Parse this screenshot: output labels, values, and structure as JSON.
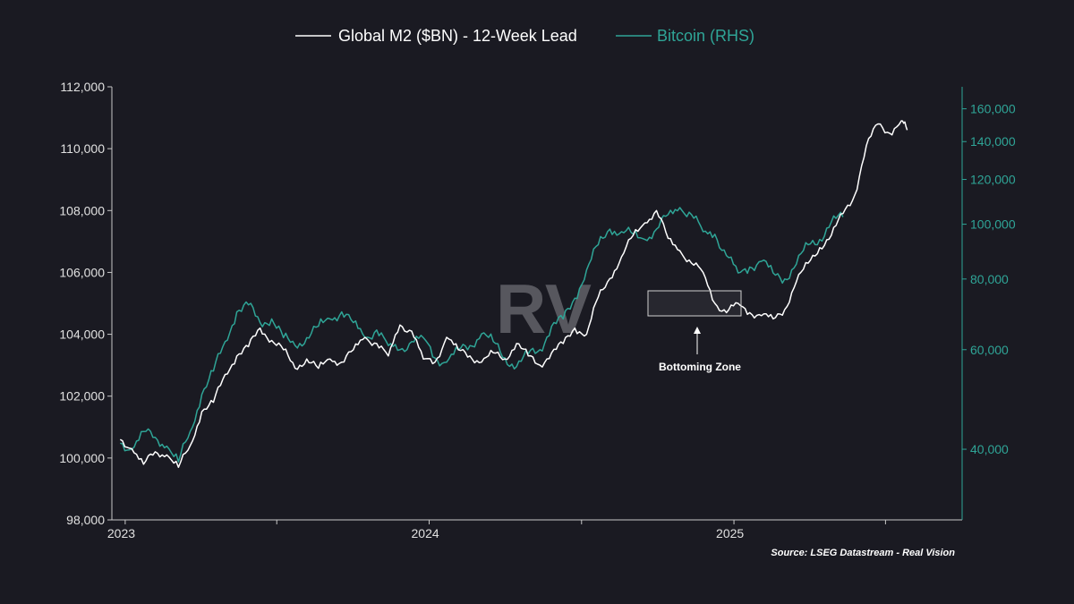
{
  "chart_data": {
    "type": "line",
    "legend_position": "top-center",
    "grid": false,
    "colors": {
      "background": "#1a1a22",
      "m2": "#ffffff",
      "btc": "#2fa597"
    },
    "x_axis": {
      "ticks": [
        "2023",
        "2024",
        "2025"
      ]
    },
    "y_left": {
      "range": [
        98000,
        112000
      ],
      "ticks": [
        98000,
        100000,
        102000,
        104000,
        106000,
        108000,
        110000,
        112000
      ],
      "tick_labels": [
        "98,000",
        "100,000",
        "102,000",
        "104,000",
        "106,000",
        "108,000",
        "110,000",
        "112,000"
      ]
    },
    "y_right": {
      "scale": "log",
      "range": [
        30000,
        175000
      ],
      "ticks": [
        40000,
        60000,
        80000,
        100000,
        120000,
        140000,
        160000
      ],
      "tick_labels": [
        "40,000",
        "60,000",
        "80,000",
        "100,000",
        "120,000",
        "140,000",
        "160,000"
      ]
    },
    "series": [
      {
        "name": "Global M2 ($BN) - 12-Week Lead",
        "axis": "left",
        "points": [
          [
            "2022-12-26",
            100600
          ],
          [
            "2023-01-09",
            100300
          ],
          [
            "2023-01-23",
            99800
          ],
          [
            "2023-02-06",
            100200
          ],
          [
            "2023-02-20",
            100100
          ],
          [
            "2023-03-06",
            99700
          ],
          [
            "2023-03-20",
            100400
          ],
          [
            "2023-04-03",
            101500
          ],
          [
            "2023-04-17",
            101800
          ],
          [
            "2023-05-01",
            102700
          ],
          [
            "2023-05-15",
            103300
          ],
          [
            "2023-05-29",
            103600
          ],
          [
            "2023-06-12",
            104200
          ],
          [
            "2023-06-26",
            103800
          ],
          [
            "2023-07-10",
            103500
          ],
          [
            "2023-07-24",
            102900
          ],
          [
            "2023-08-07",
            103200
          ],
          [
            "2023-08-21",
            102900
          ],
          [
            "2023-09-04",
            103200
          ],
          [
            "2023-09-18",
            103100
          ],
          [
            "2023-10-02",
            103500
          ],
          [
            "2023-10-16",
            103900
          ],
          [
            "2023-10-30",
            103700
          ],
          [
            "2023-11-13",
            103300
          ],
          [
            "2023-11-27",
            104300
          ],
          [
            "2023-12-11",
            104100
          ],
          [
            "2023-12-25",
            103200
          ],
          [
            "2024-01-08",
            103100
          ],
          [
            "2024-01-22",
            103900
          ],
          [
            "2024-02-05",
            103500
          ],
          [
            "2024-02-19",
            103300
          ],
          [
            "2024-03-04",
            103100
          ],
          [
            "2024-03-18",
            103400
          ],
          [
            "2024-04-01",
            103200
          ],
          [
            "2024-04-15",
            103700
          ],
          [
            "2024-04-29",
            103300
          ],
          [
            "2024-05-13",
            103000
          ],
          [
            "2024-05-27",
            103400
          ],
          [
            "2024-06-10",
            103700
          ],
          [
            "2024-06-24",
            104200
          ],
          [
            "2024-07-08",
            104000
          ],
          [
            "2024-07-22",
            105200
          ],
          [
            "2024-08-05",
            105800
          ],
          [
            "2024-08-19",
            106500
          ],
          [
            "2024-09-02",
            107200
          ],
          [
            "2024-09-16",
            107600
          ],
          [
            "2024-09-30",
            108000
          ],
          [
            "2024-10-14",
            107100
          ],
          [
            "2024-10-28",
            106700
          ],
          [
            "2024-11-11",
            106300
          ],
          [
            "2024-11-25",
            106000
          ],
          [
            "2024-12-09",
            105000
          ],
          [
            "2024-12-23",
            104700
          ],
          [
            "2025-01-06",
            105000
          ],
          [
            "2025-01-20",
            104700
          ],
          [
            "2025-02-03",
            104600
          ],
          [
            "2025-02-17",
            104500
          ],
          [
            "2025-03-03",
            104800
          ],
          [
            "2025-03-17",
            105700
          ],
          [
            "2025-03-31",
            106300
          ],
          [
            "2025-04-14",
            106800
          ],
          [
            "2025-04-28",
            107200
          ],
          [
            "2025-05-12",
            107900
          ],
          [
            "2025-05-26",
            108500
          ],
          [
            "2025-06-09",
            110100
          ],
          [
            "2025-06-23",
            110800
          ],
          [
            "2025-07-07",
            110500
          ],
          [
            "2025-07-21",
            110900
          ],
          [
            "2025-07-28",
            110600
          ]
        ]
      },
      {
        "name": "Bitcoin (RHS)",
        "axis": "right",
        "points": [
          [
            "2022-12-26",
            41000
          ],
          [
            "2023-01-09",
            40000
          ],
          [
            "2023-01-23",
            43000
          ],
          [
            "2023-02-06",
            42000
          ],
          [
            "2023-02-20",
            40500
          ],
          [
            "2023-03-06",
            38000
          ],
          [
            "2023-03-20",
            43000
          ],
          [
            "2023-04-03",
            50000
          ],
          [
            "2023-04-17",
            55000
          ],
          [
            "2023-05-01",
            62000
          ],
          [
            "2023-05-15",
            70000
          ],
          [
            "2023-05-29",
            72000
          ],
          [
            "2023-06-12",
            67000
          ],
          [
            "2023-06-26",
            68000
          ],
          [
            "2023-07-10",
            63000
          ],
          [
            "2023-07-24",
            61000
          ],
          [
            "2023-08-07",
            63000
          ],
          [
            "2023-08-21",
            66000
          ],
          [
            "2023-09-04",
            68000
          ],
          [
            "2023-09-18",
            70000
          ],
          [
            "2023-10-02",
            67000
          ],
          [
            "2023-10-16",
            63000
          ],
          [
            "2023-10-30",
            65000
          ],
          [
            "2023-11-13",
            61000
          ],
          [
            "2023-11-27",
            60000
          ],
          [
            "2023-12-11",
            62000
          ],
          [
            "2023-12-25",
            63000
          ],
          [
            "2024-01-08",
            58000
          ],
          [
            "2024-01-22",
            57000
          ],
          [
            "2024-02-05",
            60000
          ],
          [
            "2024-02-19",
            61000
          ],
          [
            "2024-03-04",
            64000
          ],
          [
            "2024-03-18",
            62000
          ],
          [
            "2024-04-01",
            58000
          ],
          [
            "2024-04-15",
            56000
          ],
          [
            "2024-04-29",
            59000
          ],
          [
            "2024-05-13",
            60000
          ],
          [
            "2024-05-27",
            66000
          ],
          [
            "2024-06-10",
            68000
          ],
          [
            "2024-06-24",
            74000
          ],
          [
            "2024-07-08",
            83000
          ],
          [
            "2024-07-22",
            92000
          ],
          [
            "2024-08-05",
            98000
          ],
          [
            "2024-08-19",
            97000
          ],
          [
            "2024-09-02",
            96000
          ],
          [
            "2024-09-16",
            94000
          ],
          [
            "2024-09-30",
            98000
          ],
          [
            "2024-10-14",
            104000
          ],
          [
            "2024-10-28",
            107000
          ],
          [
            "2024-11-11",
            104000
          ],
          [
            "2024-11-25",
            97000
          ],
          [
            "2024-12-09",
            96000
          ],
          [
            "2024-12-23",
            88000
          ],
          [
            "2025-01-06",
            82000
          ],
          [
            "2025-01-20",
            84000
          ],
          [
            "2025-02-03",
            86000
          ],
          [
            "2025-02-17",
            82000
          ],
          [
            "2025-03-03",
            80000
          ],
          [
            "2025-03-17",
            85000
          ],
          [
            "2025-03-31",
            92000
          ],
          [
            "2025-04-14",
            94000
          ],
          [
            "2025-04-28",
            101000
          ],
          [
            "2025-05-12",
            103000
          ]
        ]
      }
    ],
    "annotations": [
      {
        "text": "Bottoming Zone"
      }
    ],
    "source": "Source: LSEG Datastream - Real Vision",
    "watermark": "RV"
  }
}
